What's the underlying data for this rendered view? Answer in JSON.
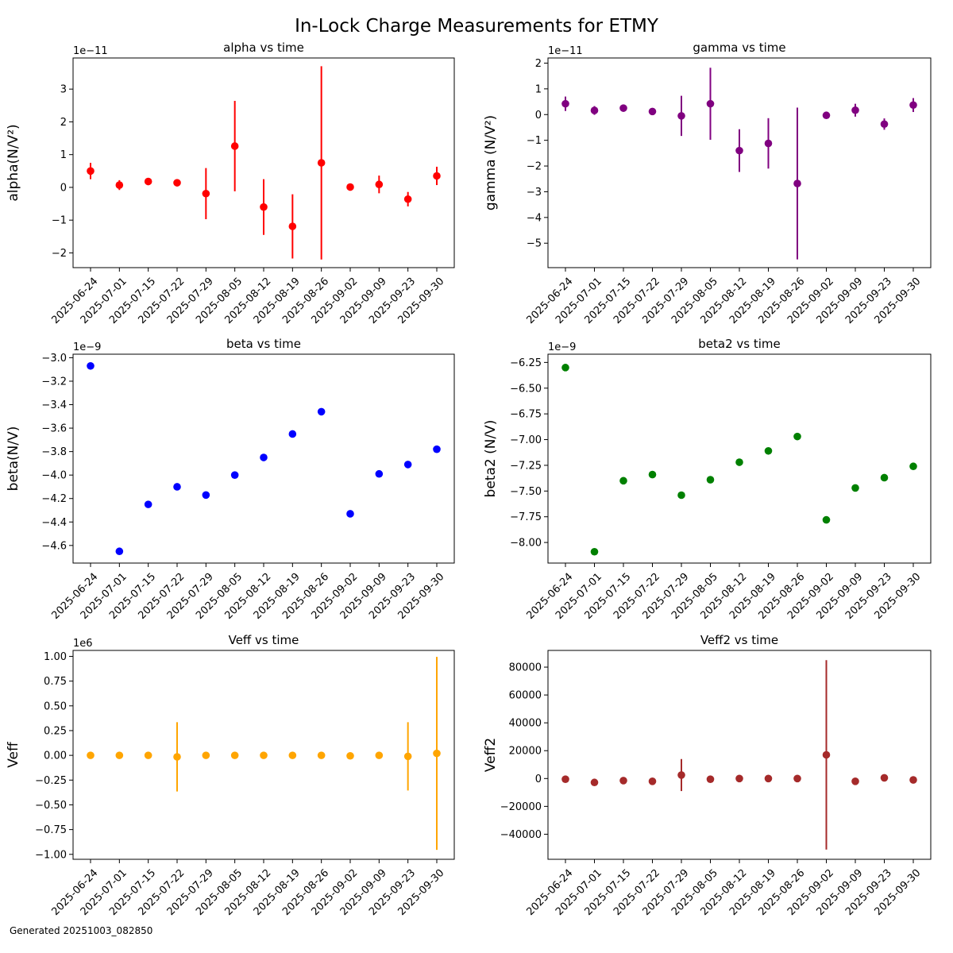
{
  "figure": {
    "title": "In-Lock Charge Measurements for ETMY",
    "footer": "Generated 20251003_082850"
  },
  "dates": [
    "2025-06-24",
    "2025-07-01",
    "2025-07-15",
    "2025-07-22",
    "2025-07-29",
    "2025-08-05",
    "2025-08-12",
    "2025-08-19",
    "2025-08-26",
    "2025-09-02",
    "2025-09-09",
    "2025-09-23",
    "2025-09-30"
  ],
  "chart_data": [
    {
      "id": "alpha",
      "type": "scatter",
      "title": "alpha vs time",
      "ylabel": "alpha(N/V²)",
      "offset_text": "1e−11",
      "color": "#ff0000",
      "ylim": [
        -2.45,
        3.95
      ],
      "yticks": [
        -2,
        -1,
        0,
        1,
        2,
        3
      ],
      "ytick_labels": [
        "−2",
        "−1",
        "0",
        "1",
        "2",
        "3"
      ],
      "values": [
        0.5,
        0.07,
        0.18,
        0.14,
        -0.19,
        1.26,
        -0.6,
        -1.19,
        0.75,
        0.01,
        0.09,
        -0.36,
        0.35
      ],
      "errors": [
        0.25,
        0.15,
        0.08,
        0.08,
        0.78,
        1.38,
        0.85,
        0.98,
        2.95,
        0.05,
        0.27,
        0.22,
        0.28
      ]
    },
    {
      "id": "gamma",
      "type": "scatter",
      "title": "gamma vs time",
      "ylabel": "gamma (N/V²)",
      "offset_text": "1e−11",
      "color": "#800080",
      "ylim": [
        -5.95,
        2.2
      ],
      "yticks": [
        -5,
        -4,
        -3,
        -2,
        -1,
        0,
        1,
        2
      ],
      "ytick_labels": [
        "−5",
        "−4",
        "−3",
        "−2",
        "−1",
        "0",
        "1",
        "2"
      ],
      "values": [
        0.42,
        0.16,
        0.25,
        0.12,
        -0.05,
        0.42,
        -1.4,
        -1.12,
        -2.68,
        -0.03,
        0.17,
        -0.37,
        0.37
      ],
      "errors": [
        0.28,
        0.17,
        0.08,
        0.08,
        0.78,
        1.4,
        0.83,
        0.98,
        2.95,
        0.05,
        0.25,
        0.22,
        0.27
      ]
    },
    {
      "id": "beta",
      "type": "scatter",
      "title": "beta vs time",
      "ylabel": "beta(N/V)",
      "offset_text": "1e−9",
      "color": "#0000ff",
      "ylim": [
        -4.75,
        -2.97
      ],
      "yticks": [
        -4.6,
        -4.4,
        -4.2,
        -4.0,
        -3.8,
        -3.6,
        -3.4,
        -3.2,
        -3.0
      ],
      "ytick_labels": [
        "−4.6",
        "−4.4",
        "−4.2",
        "−4.0",
        "−3.8",
        "−3.6",
        "−3.4",
        "−3.2",
        "−3.0"
      ],
      "values": [
        -3.07,
        -4.65,
        -4.25,
        -4.1,
        -4.17,
        -4.0,
        -3.85,
        -3.65,
        -3.46,
        -4.33,
        -3.99,
        -3.91,
        -3.78
      ],
      "errors": [
        0,
        0,
        0,
        0,
        0,
        0,
        0,
        0,
        0,
        0,
        0,
        0,
        0
      ]
    },
    {
      "id": "beta2",
      "type": "scatter",
      "title": "beta2 vs time",
      "ylabel": "beta2 (N/V)",
      "offset_text": "1e−9",
      "color": "#008000",
      "ylim": [
        -8.2,
        -6.17
      ],
      "yticks": [
        -8.0,
        -7.75,
        -7.5,
        -7.25,
        -7.0,
        -6.75,
        -6.5,
        -6.25
      ],
      "ytick_labels": [
        "−8.00",
        "−7.75",
        "−7.50",
        "−7.25",
        "−7.00",
        "−6.75",
        "−6.50",
        "−6.25"
      ],
      "values": [
        -6.3,
        -8.09,
        -7.4,
        -7.34,
        -7.54,
        -7.39,
        -7.22,
        -7.11,
        -6.97,
        -7.78,
        -7.47,
        -7.37,
        -7.26
      ],
      "errors": [
        0,
        0,
        0,
        0,
        0,
        0,
        0,
        0,
        0,
        0,
        0,
        0,
        0
      ]
    },
    {
      "id": "veff",
      "type": "scatter",
      "title": "Veff vs time",
      "ylabel": "Veff",
      "offset_text": "1e6",
      "color": "#ffa500",
      "ylim": [
        -1.05,
        1.06
      ],
      "yticks": [
        -1.0,
        -0.75,
        -0.5,
        -0.25,
        0.0,
        0.25,
        0.5,
        0.75,
        1.0
      ],
      "ytick_labels": [
        "−1.00",
        "−0.75",
        "−0.50",
        "−0.25",
        "0.00",
        "0.25",
        "0.50",
        "0.75",
        "1.00"
      ],
      "values": [
        0.0,
        0.0,
        0.0,
        -0.015,
        0.0,
        0.0,
        0.0,
        0.0,
        0.0,
        -0.005,
        0.0,
        -0.01,
        0.02
      ],
      "errors": [
        0.01,
        0.01,
        0.01,
        0.35,
        0.01,
        0.01,
        0.01,
        0.03,
        0.01,
        0.01,
        0.01,
        0.345,
        0.975
      ]
    },
    {
      "id": "veff2",
      "type": "scatter",
      "title": "Veff2 vs time",
      "ylabel": "Veff2",
      "offset_text": "",
      "color": "#a52a2a",
      "ylim": [
        -58000,
        92000
      ],
      "yticks": [
        -40000,
        -20000,
        0,
        20000,
        40000,
        60000,
        80000
      ],
      "ytick_labels": [
        "−40000",
        "−20000",
        "0",
        "20000",
        "40000",
        "60000",
        "80000"
      ],
      "values": [
        -500,
        -2800,
        -1500,
        -2000,
        2500,
        -500,
        0,
        0,
        0,
        17000,
        -2000,
        500,
        -1000
      ],
      "errors": [
        500,
        1500,
        300,
        300,
        11500,
        300,
        300,
        300,
        300,
        68000,
        1800,
        500,
        300
      ]
    }
  ]
}
